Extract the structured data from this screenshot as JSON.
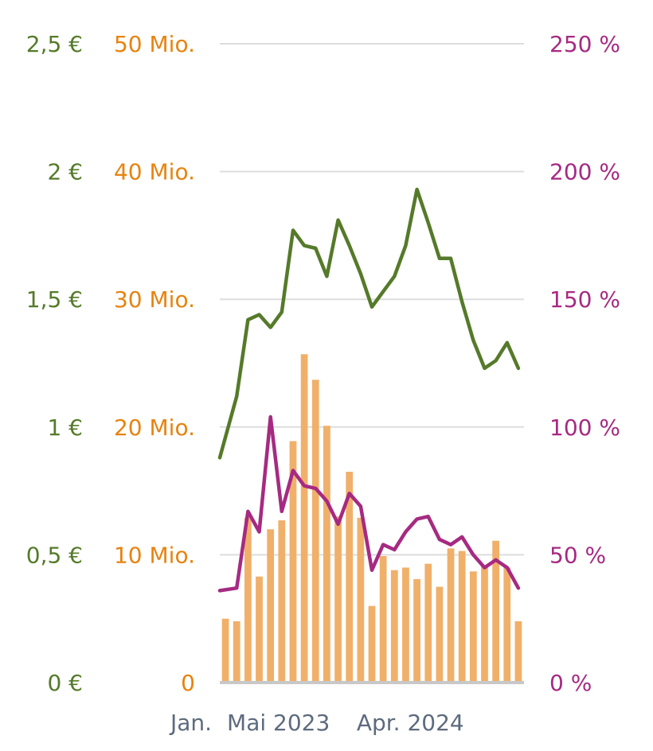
{
  "chart_data": {
    "type": "bar",
    "title": "",
    "grid": true,
    "legend": "none",
    "colors": {
      "price": "#557a2a",
      "volume": "#e8830f",
      "volume_bar": "#f0b06a",
      "percent": "#a62a82",
      "x_axis": "#5d6b7e",
      "grid": "#dddddd",
      "baseline": "#c8c8c8"
    },
    "axes": {
      "price": {
        "ylim": [
          0,
          2.5
        ],
        "ticks": [
          "0 €",
          "0,5 €",
          "1 €",
          "1,5 €",
          "2 €",
          "2,5 €"
        ],
        "tick_values": [
          0,
          0.5,
          1,
          1.5,
          2,
          2.5
        ]
      },
      "volume": {
        "ylim": [
          0,
          50
        ],
        "unit": "Mio.",
        "ticks": [
          "0",
          "10 Mio.",
          "20 Mio.",
          "30 Mio.",
          "40 Mio.",
          "50 Mio."
        ],
        "tick_values": [
          0,
          10,
          20,
          30,
          40,
          50
        ]
      },
      "percent": {
        "ylim": [
          0,
          250
        ],
        "ticks": [
          "0 %",
          "50 %",
          "100 %",
          "150 %",
          "200 %",
          "250 %"
        ],
        "tick_values": [
          0,
          50,
          100,
          150,
          200,
          250
        ]
      },
      "x_ticks": [
        {
          "label": "Jan.",
          "index": 0
        },
        {
          "label": "Mai 2023",
          "index": 4
        },
        {
          "label": "Apr. 2024",
          "index": 15
        }
      ]
    },
    "bar_series": {
      "axis": "volume",
      "values": [
        5.0,
        4.8,
        12.9,
        8.3,
        12.0,
        12.7,
        18.9,
        25.7,
        23.7,
        20.1,
        13.0,
        16.5,
        12.9,
        6.0,
        9.9,
        8.8,
        9.0,
        8.1,
        9.3,
        7.5,
        10.5,
        10.3,
        8.7,
        9.2,
        11.1,
        9.0,
        4.8
      ]
    },
    "series": [
      {
        "axis": "price",
        "values": [
          0.88,
          1.12,
          1.42,
          1.44,
          1.39,
          1.45,
          1.77,
          1.71,
          1.7,
          1.59,
          1.81,
          1.71,
          1.6,
          1.47,
          1.53,
          1.59,
          1.71,
          1.93,
          1.8,
          1.66,
          1.66,
          1.49,
          1.34,
          1.23,
          1.26,
          1.33,
          1.23
        ]
      },
      {
        "axis": "percent",
        "values": [
          36,
          37,
          67,
          59,
          104,
          67,
          83,
          77,
          76,
          71,
          62,
          74,
          69,
          44,
          54,
          52,
          59,
          64,
          65,
          56,
          54,
          57,
          50,
          45,
          48,
          45,
          37
        ]
      }
    ]
  }
}
